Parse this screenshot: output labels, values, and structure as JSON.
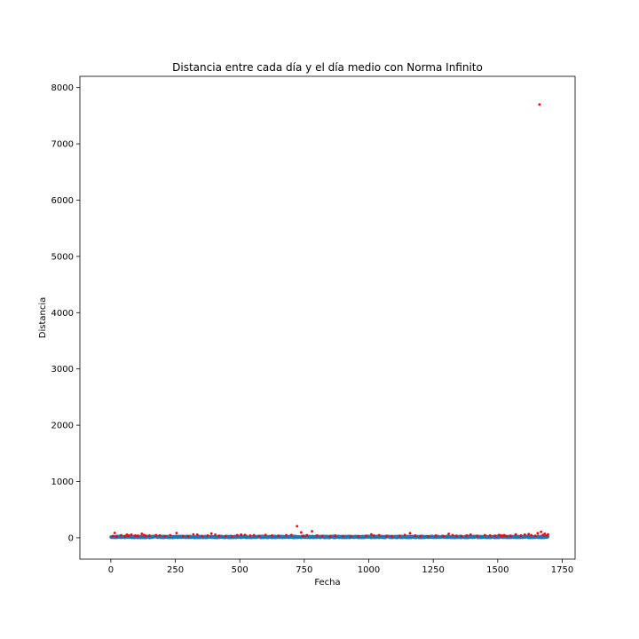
{
  "chart_data": {
    "type": "scatter",
    "title": "Distancia entre cada día y el día medio con Norma Infinito",
    "xlabel": "Fecha",
    "ylabel": "Distancia",
    "xlim": [
      -120,
      1800
    ],
    "ylim": [
      -380,
      8200
    ],
    "xticks": [
      0,
      250,
      500,
      750,
      1000,
      1250,
      1500,
      1750
    ],
    "yticks": [
      0,
      1000,
      2000,
      3000,
      4000,
      5000,
      6000,
      7000,
      8000
    ],
    "grid": false,
    "legend": "none",
    "series": [
      {
        "color": "#1f77b4",
        "marker": "point",
        "description_x_range": [
          0,
          1695
        ],
        "values_baseline": [
          0,
          30
        ]
      },
      {
        "color": "#ff0000",
        "marker": "point",
        "points": [
          [
            8,
            30
          ],
          [
            15,
            85
          ],
          [
            22,
            20
          ],
          [
            40,
            45
          ],
          [
            55,
            30
          ],
          [
            62,
            55
          ],
          [
            70,
            40
          ],
          [
            80,
            55
          ],
          [
            95,
            40
          ],
          [
            105,
            35
          ],
          [
            120,
            70
          ],
          [
            128,
            50
          ],
          [
            135,
            35
          ],
          [
            150,
            40
          ],
          [
            175,
            45
          ],
          [
            190,
            40
          ],
          [
            210,
            30
          ],
          [
            230,
            45
          ],
          [
            255,
            85
          ],
          [
            280,
            30
          ],
          [
            300,
            25
          ],
          [
            320,
            60
          ],
          [
            335,
            55
          ],
          [
            355,
            30
          ],
          [
            375,
            40
          ],
          [
            390,
            75
          ],
          [
            405,
            55
          ],
          [
            420,
            35
          ],
          [
            445,
            30
          ],
          [
            470,
            25
          ],
          [
            490,
            45
          ],
          [
            505,
            55
          ],
          [
            520,
            50
          ],
          [
            540,
            40
          ],
          [
            555,
            45
          ],
          [
            575,
            30
          ],
          [
            600,
            50
          ],
          [
            625,
            40
          ],
          [
            650,
            35
          ],
          [
            680,
            45
          ],
          [
            700,
            50
          ],
          [
            722,
            205
          ],
          [
            738,
            95
          ],
          [
            745,
            30
          ],
          [
            760,
            45
          ],
          [
            780,
            115
          ],
          [
            800,
            40
          ],
          [
            820,
            30
          ],
          [
            850,
            25
          ],
          [
            870,
            40
          ],
          [
            900,
            30
          ],
          [
            930,
            20
          ],
          [
            960,
            25
          ],
          [
            990,
            35
          ],
          [
            1010,
            60
          ],
          [
            1020,
            40
          ],
          [
            1040,
            45
          ],
          [
            1070,
            30
          ],
          [
            1090,
            25
          ],
          [
            1120,
            35
          ],
          [
            1140,
            50
          ],
          [
            1160,
            80
          ],
          [
            1180,
            40
          ],
          [
            1200,
            30
          ],
          [
            1230,
            25
          ],
          [
            1260,
            40
          ],
          [
            1290,
            30
          ],
          [
            1310,
            70
          ],
          [
            1325,
            45
          ],
          [
            1340,
            35
          ],
          [
            1360,
            30
          ],
          [
            1380,
            40
          ],
          [
            1395,
            55
          ],
          [
            1420,
            35
          ],
          [
            1450,
            45
          ],
          [
            1470,
            40
          ],
          [
            1490,
            35
          ],
          [
            1505,
            50
          ],
          [
            1512,
            40
          ],
          [
            1518,
            35
          ],
          [
            1525,
            45
          ],
          [
            1535,
            30
          ],
          [
            1550,
            35
          ],
          [
            1570,
            60
          ],
          [
            1590,
            40
          ],
          [
            1605,
            55
          ],
          [
            1620,
            65
          ],
          [
            1630,
            45
          ],
          [
            1645,
            35
          ],
          [
            1655,
            80
          ],
          [
            1662,
            7700
          ],
          [
            1668,
            105
          ],
          [
            1675,
            50
          ],
          [
            1682,
            70
          ],
          [
            1690,
            40
          ],
          [
            1695,
            60
          ]
        ]
      }
    ]
  }
}
